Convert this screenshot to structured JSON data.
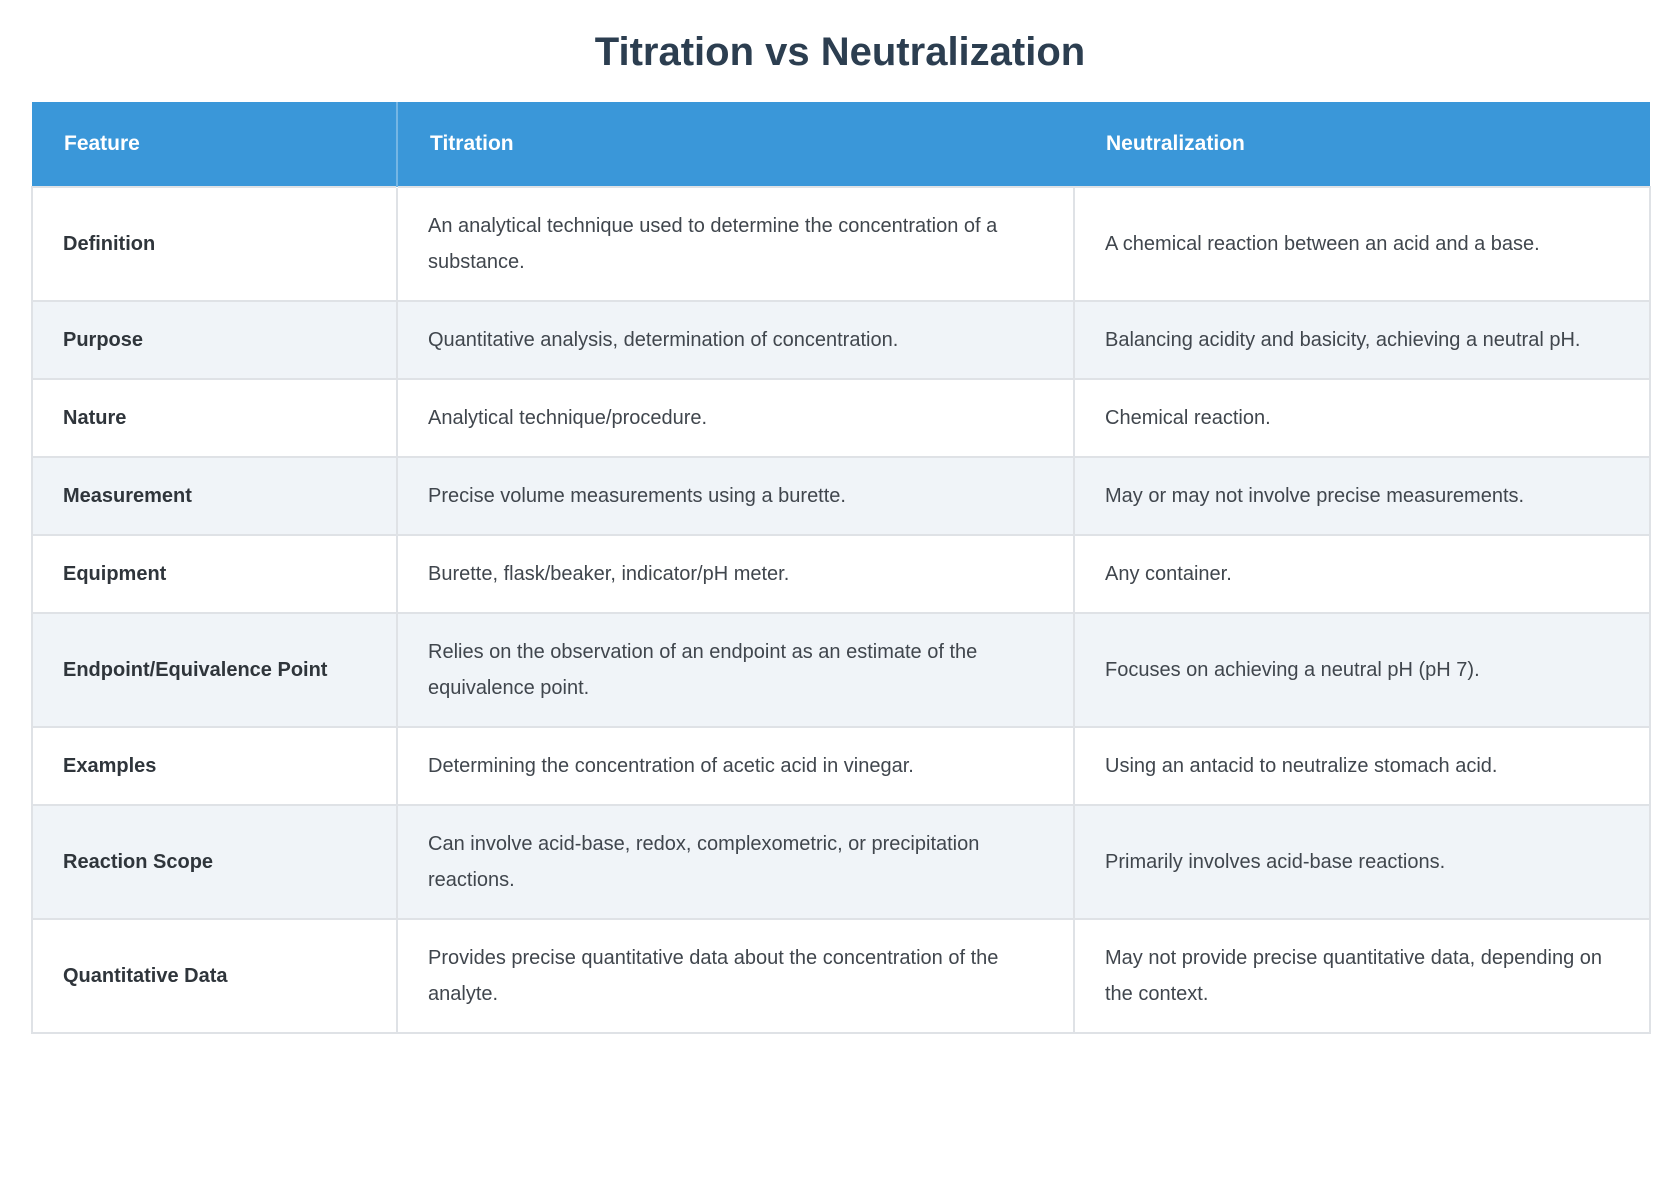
{
  "page": {
    "title": "Titration vs Neutralization"
  },
  "table": {
    "columns": [
      "Feature",
      "Titration",
      "Neutralization"
    ],
    "rows": [
      {
        "feature": "Definition",
        "titration": "An analytical technique used to determine the concentration of a substance.",
        "neutralization": "A chemical reaction between an acid and a base."
      },
      {
        "feature": "Purpose",
        "titration": "Quantitative analysis, determination of concentration.",
        "neutralization": "Balancing acidity and basicity, achieving a neutral pH."
      },
      {
        "feature": "Nature",
        "titration": "Analytical technique/procedure.",
        "neutralization": "Chemical reaction."
      },
      {
        "feature": "Measurement",
        "titration": "Precise volume measurements using a burette.",
        "neutralization": "May or may not involve precise measurements."
      },
      {
        "feature": "Equipment",
        "titration": "Burette, flask/beaker, indicator/pH meter.",
        "neutralization": "Any container."
      },
      {
        "feature": "Endpoint/Equivalence Point",
        "titration": "Relies on the observation of an endpoint as an estimate of the equivalence point.",
        "neutralization": "Focuses on achieving a neutral pH (pH 7)."
      },
      {
        "feature": "Examples",
        "titration": "Determining the concentration of acetic acid in vinegar.",
        "neutralization": "Using an antacid to neutralize stomach acid."
      },
      {
        "feature": "Reaction Scope",
        "titration": "Can involve acid-base, redox, complexometric, or precipitation reactions.",
        "neutralization": "Primarily involves acid-base reactions."
      },
      {
        "feature": "Quantitative Data",
        "titration": "Provides precise quantitative data about the concentration of the analyte.",
        "neutralization": "May not provide precise quantitative data, depending on the context."
      }
    ]
  },
  "colors": {
    "header_bg": "#3a97d9",
    "header_text": "#ffffff",
    "row_alt_bg": "#f0f4f8",
    "title_text": "#2c3e50",
    "body_text": "#40464d",
    "label_text": "#2f353b",
    "border": "#dfe2e6",
    "page_bg": "#ffffff"
  }
}
